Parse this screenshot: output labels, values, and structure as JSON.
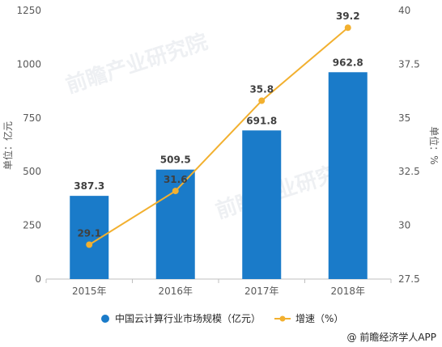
{
  "chart_data": {
    "type": "bar",
    "categories": [
      "2015年",
      "2016年",
      "2017年",
      "2018年"
    ],
    "series": [
      {
        "name": "中国云计算行业市场规模（亿元）",
        "type": "bar",
        "axis": "left",
        "values": [
          387.3,
          509.5,
          691.8,
          962.8
        ],
        "labels": [
          "387.3",
          "509.5",
          "691.8",
          "962.8"
        ]
      },
      {
        "name": "增速（%）",
        "type": "line",
        "axis": "right",
        "values": [
          29.1,
          31.6,
          35.8,
          39.2
        ],
        "labels": [
          "29.1",
          "31.6",
          "35.8",
          "39.2"
        ]
      }
    ],
    "ylabel": "单位：亿元",
    "ylabel_right": "单位：%",
    "ylim": [
      0,
      1250
    ],
    "ylim_right": [
      27.5,
      40
    ],
    "yticks": [
      "0",
      "250",
      "500",
      "750",
      "1000",
      "1250"
    ],
    "yticks_right": [
      "27.5",
      "30",
      "32.5",
      "35",
      "37.5",
      "40"
    ],
    "legend": "bottom",
    "grid": false
  },
  "colors": {
    "bar": "#1a7bc9",
    "line": "#f2b02f"
  },
  "credit": "@ 前瞻经济学人APP"
}
